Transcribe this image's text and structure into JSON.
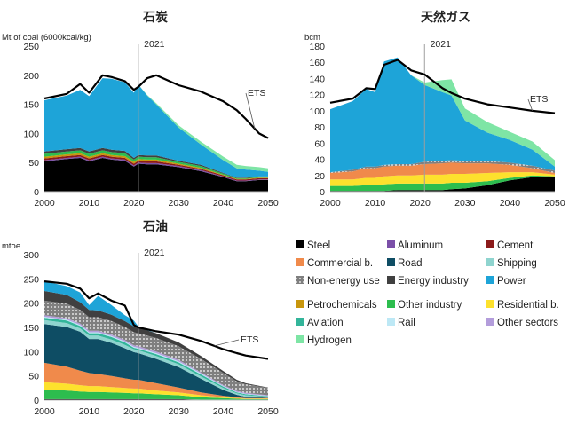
{
  "colors": {
    "steel": "#000000",
    "aluminum": "#7b4fa8",
    "cement": "#8b1a1a",
    "commercial": "#f08a4b",
    "road": "#0e4d64",
    "shipping": "#8fd4cf",
    "non_energy": "#7f7f7f",
    "energy_industry": "#404040",
    "power": "#1ea4d8",
    "petrochemicals": "#c8960c",
    "other_industry": "#2dbd4e",
    "residential": "#fde12d",
    "aviation": "#33b59a",
    "rail": "#bde8f5",
    "other_sectors": "#b39ddb",
    "hydrogen": "#7ee5a5",
    "ets_line": "#000000",
    "marker_line": "#9e9e9e"
  },
  "legend": [
    {
      "key": "steel",
      "label": "Steel"
    },
    {
      "key": "aluminum",
      "label": "Aluminum"
    },
    {
      "key": "cement",
      "label": "Cement"
    },
    {
      "key": "commercial",
      "label": "Commercial b."
    },
    {
      "key": "road",
      "label": "Road"
    },
    {
      "key": "shipping",
      "label": "Shipping"
    },
    {
      "key": "non_energy",
      "label": "Non-energy use"
    },
    {
      "key": "energy_industry",
      "label": "Energy industry"
    },
    {
      "key": "power",
      "label": "Power"
    },
    {
      "key": "petrochemicals",
      "label": "Petrochemicals"
    },
    {
      "key": "other_industry",
      "label": "Other industry"
    },
    {
      "key": "residential",
      "label": "Residential b."
    },
    {
      "key": "aviation",
      "label": "Aviation"
    },
    {
      "key": "rail",
      "label": "Rail"
    },
    {
      "key": "other_sectors",
      "label": "Other sectors"
    },
    {
      "key": "hydrogen",
      "label": "Hydrogen"
    }
  ],
  "chart_data": [
    {
      "id": "coal",
      "type": "area",
      "title": "石炭",
      "ylabel": "Mt of coal (6000kcal/kg)",
      "ylim": [
        0,
        250
      ],
      "yticks": [
        0,
        50,
        100,
        150,
        200,
        250
      ],
      "xlim": [
        2000,
        2050
      ],
      "xticks": [
        2000,
        2010,
        2020,
        2030,
        2040,
        2050
      ],
      "marker_year": 2021,
      "marker_label": "2021",
      "line_label": "ETS",
      "x": [
        2000,
        2005,
        2008,
        2010,
        2013,
        2015,
        2018,
        2020,
        2021,
        2023,
        2025,
        2030,
        2035,
        2040,
        2043,
        2045,
        2048,
        2050
      ],
      "series": [
        {
          "key": "steel",
          "values": [
            52,
            56,
            58,
            52,
            58,
            55,
            53,
            43,
            48,
            47,
            47,
            42,
            35,
            25,
            18,
            18,
            20,
            20
          ]
        },
        {
          "key": "aluminum",
          "values": [
            2,
            2,
            2,
            2,
            2,
            2,
            2,
            2,
            2,
            2,
            2,
            2,
            2,
            1,
            1,
            1,
            1,
            1
          ]
        },
        {
          "key": "cement",
          "values": [
            3,
            3,
            3,
            3,
            3,
            3,
            3,
            3,
            3,
            3,
            3,
            2,
            2,
            2,
            2,
            2,
            2,
            2
          ]
        },
        {
          "key": "petrochemicals",
          "values": [
            3,
            3,
            3,
            3,
            3,
            3,
            3,
            3,
            3,
            3,
            3,
            2,
            2,
            1,
            1,
            1,
            1,
            1
          ]
        },
        {
          "key": "other_industry",
          "values": [
            5,
            5,
            5,
            5,
            5,
            5,
            5,
            4,
            4,
            4,
            4,
            3,
            3,
            2,
            1,
            1,
            1,
            1
          ]
        },
        {
          "key": "energy_industry",
          "values": [
            4,
            4,
            4,
            4,
            4,
            4,
            4,
            3,
            3,
            3,
            3,
            2,
            2,
            1,
            1,
            1,
            1,
            1
          ]
        },
        {
          "key": "power",
          "values": [
            88,
            92,
            100,
            95,
            120,
            122,
            118,
            112,
            121,
            103,
            88,
            57,
            35,
            22,
            16,
            14,
            10,
            8
          ]
        },
        {
          "key": "hydrogen",
          "values": [
            0,
            0,
            0,
            0,
            0,
            0,
            0,
            0,
            0,
            1,
            2,
            4,
            5,
            6,
            6,
            6,
            6,
            6
          ]
        }
      ],
      "ets": [
        160,
        168,
        185,
        170,
        200,
        197,
        190,
        175,
        180,
        195,
        200,
        183,
        172,
        155,
        140,
        125,
        100,
        92
      ]
    },
    {
      "id": "gas",
      "type": "area",
      "title": "天然ガス",
      "ylabel": "bcm",
      "ylim": [
        0,
        180
      ],
      "yticks": [
        0,
        20,
        40,
        60,
        80,
        100,
        120,
        140,
        160,
        180
      ],
      "xlim": [
        2000,
        2050
      ],
      "xticks": [
        2000,
        2010,
        2020,
        2030,
        2040,
        2050
      ],
      "marker_year": 2021,
      "marker_label": "2021",
      "line_label": "ETS",
      "x": [
        2000,
        2005,
        2008,
        2010,
        2012,
        2015,
        2018,
        2021,
        2025,
        2027,
        2030,
        2035,
        2040,
        2045,
        2050
      ],
      "series": [
        {
          "key": "steel",
          "values": [
            1,
            1,
            1,
            1,
            1,
            2,
            2,
            2,
            2,
            3,
            4,
            8,
            14,
            18,
            18
          ]
        },
        {
          "key": "other_industry",
          "values": [
            6,
            6,
            7,
            7,
            8,
            8,
            8,
            8,
            8,
            8,
            7,
            5,
            3,
            2,
            1
          ]
        },
        {
          "key": "residential",
          "values": [
            8,
            8,
            9,
            9,
            10,
            10,
            10,
            11,
            11,
            11,
            11,
            10,
            7,
            4,
            2
          ]
        },
        {
          "key": "commercial",
          "values": [
            8,
            10,
            12,
            12,
            12,
            12,
            12,
            13,
            14,
            14,
            13,
            12,
            9,
            5,
            2
          ]
        },
        {
          "key": "non_energy",
          "values": [
            1,
            2,
            2,
            2,
            2,
            2,
            2,
            3,
            3,
            3,
            3,
            3,
            3,
            3,
            3
          ]
        },
        {
          "key": "power",
          "values": [
            78,
            85,
            96,
            92,
            128,
            132,
            110,
            95,
            85,
            80,
            50,
            35,
            28,
            20,
            5
          ]
        },
        {
          "key": "hydrogen",
          "values": [
            0,
            0,
            0,
            0,
            0,
            0,
            0,
            3,
            15,
            20,
            15,
            13,
            10,
            10,
            8
          ]
        }
      ],
      "ets": [
        110,
        115,
        128,
        127,
        157,
        163,
        150,
        145,
        128,
        122,
        115,
        108,
        104,
        100,
        97
      ]
    },
    {
      "id": "oil",
      "type": "area",
      "title": "石油",
      "ylabel": "mtoe",
      "ylim": [
        0,
        300
      ],
      "yticks": [
        0,
        50,
        100,
        150,
        200,
        250,
        300
      ],
      "xlim": [
        2000,
        2050
      ],
      "xticks": [
        2000,
        2010,
        2020,
        2030,
        2040,
        2050
      ],
      "marker_year": 2021,
      "marker_label": "2021",
      "line_label": "ETS",
      "x": [
        2000,
        2005,
        2008,
        2010,
        2012,
        2015,
        2018,
        2020,
        2021,
        2025,
        2030,
        2035,
        2040,
        2043,
        2045,
        2050
      ],
      "series": [
        {
          "key": "steel",
          "values": [
            2,
            2,
            2,
            2,
            2,
            2,
            2,
            2,
            2,
            2,
            2,
            1,
            1,
            1,
            1,
            1
          ]
        },
        {
          "key": "other_industry",
          "values": [
            20,
            18,
            16,
            15,
            15,
            14,
            13,
            12,
            12,
            10,
            8,
            5,
            3,
            2,
            1,
            1
          ]
        },
        {
          "key": "residential",
          "values": [
            15,
            14,
            13,
            12,
            12,
            11,
            10,
            10,
            10,
            8,
            6,
            4,
            2,
            1,
            1,
            1
          ]
        },
        {
          "key": "commercial",
          "values": [
            40,
            35,
            30,
            27,
            25,
            23,
            20,
            18,
            18,
            15,
            10,
            6,
            3,
            2,
            1,
            1
          ]
        },
        {
          "key": "road",
          "values": [
            80,
            82,
            80,
            70,
            72,
            68,
            62,
            57,
            55,
            50,
            42,
            28,
            12,
            5,
            3,
            1
          ]
        },
        {
          "key": "shipping",
          "values": [
            8,
            8,
            7,
            7,
            7,
            7,
            7,
            6,
            6,
            6,
            6,
            5,
            4,
            3,
            3,
            2
          ]
        },
        {
          "key": "aviation",
          "values": [
            5,
            5,
            5,
            5,
            5,
            5,
            5,
            3,
            3,
            4,
            4,
            4,
            3,
            2,
            2,
            1
          ]
        },
        {
          "key": "rail",
          "values": [
            2,
            2,
            2,
            2,
            2,
            2,
            2,
            2,
            2,
            2,
            2,
            2,
            1,
            1,
            1,
            1
          ]
        },
        {
          "key": "other_sectors",
          "values": [
            3,
            3,
            3,
            3,
            3,
            3,
            3,
            3,
            3,
            3,
            3,
            2,
            2,
            2,
            2,
            1
          ]
        },
        {
          "key": "non_energy",
          "values": [
            30,
            30,
            28,
            28,
            28,
            28,
            27,
            27,
            27,
            28,
            28,
            28,
            25,
            20,
            18,
            15
          ]
        },
        {
          "key": "energy_industry",
          "values": [
            20,
            18,
            16,
            15,
            14,
            13,
            12,
            12,
            12,
            10,
            8,
            6,
            4,
            3,
            2,
            1
          ]
        },
        {
          "key": "power",
          "values": [
            20,
            18,
            20,
            10,
            30,
            20,
            12,
            12,
            2,
            0,
            0,
            0,
            0,
            0,
            0,
            0
          ]
        }
      ],
      "ets": [
        245,
        240,
        230,
        210,
        220,
        205,
        195,
        155,
        150,
        142,
        135,
        122,
        105,
        97,
        92,
        85
      ]
    }
  ]
}
